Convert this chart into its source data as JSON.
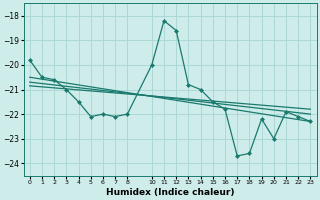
{
  "xlabel": "Humidex (Indice chaleur)",
  "background_color": "#ceecea",
  "grid_color": "#aed8d5",
  "line_color": "#1a7a6e",
  "xlim": [
    -0.5,
    23.5
  ],
  "ylim": [
    -24.5,
    -17.5
  ],
  "yticks": [
    -24,
    -23,
    -22,
    -21,
    -20,
    -19,
    -18
  ],
  "xticks": [
    0,
    1,
    2,
    3,
    4,
    5,
    6,
    7,
    8,
    10,
    11,
    12,
    13,
    14,
    15,
    16,
    17,
    18,
    19,
    20,
    21,
    22,
    23
  ],
  "series_main": {
    "x": [
      0,
      1,
      2,
      3,
      4,
      5,
      6,
      7,
      8,
      10,
      11,
      12,
      13,
      14,
      15,
      16,
      17,
      18,
      19,
      20,
      21,
      22,
      23
    ],
    "y": [
      -19.8,
      -20.5,
      -20.6,
      -21.0,
      -21.5,
      -22.1,
      -22.0,
      -22.1,
      -22.0,
      -20.0,
      -18.2,
      -18.6,
      -20.8,
      -21.0,
      -21.5,
      -21.8,
      -23.7,
      -23.6,
      -22.2,
      -23.0,
      -21.9,
      -22.1,
      -22.3
    ]
  },
  "series_lines": [
    {
      "x": [
        0,
        23
      ],
      "y": [
        -20.5,
        -22.3
      ]
    },
    {
      "x": [
        0,
        23
      ],
      "y": [
        -20.7,
        -22.0
      ]
    },
    {
      "x": [
        0,
        23
      ],
      "y": [
        -20.85,
        -21.8
      ]
    }
  ]
}
